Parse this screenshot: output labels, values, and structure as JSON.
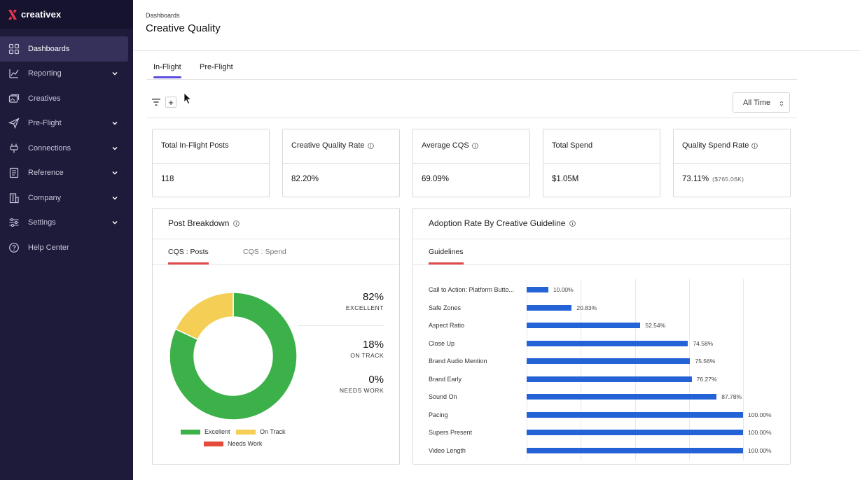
{
  "app": {
    "name": "creativex",
    "brand_color": "#e8384f",
    "sidebar_bg": "#1d1a3a"
  },
  "sidebar": {
    "items": [
      {
        "label": "Dashboards",
        "icon": "dashboard-grid-icon",
        "active": true,
        "has_chevron": false
      },
      {
        "label": "Reporting",
        "icon": "chart-icon",
        "active": false,
        "has_chevron": true
      },
      {
        "label": "Creatives",
        "icon": "image-stack-icon",
        "active": false,
        "has_chevron": false
      },
      {
        "label": "Pre-Flight",
        "icon": "paper-plane-icon",
        "active": false,
        "has_chevron": true
      },
      {
        "label": "Connections",
        "icon": "plug-icon",
        "active": false,
        "has_chevron": true
      },
      {
        "label": "Reference",
        "icon": "book-icon",
        "active": false,
        "has_chevron": true
      },
      {
        "label": "Company",
        "icon": "building-icon",
        "active": false,
        "has_chevron": true
      },
      {
        "label": "Settings",
        "icon": "sliders-icon",
        "active": false,
        "has_chevron": true
      },
      {
        "label": "Help Center",
        "icon": "help-circle-icon",
        "active": false,
        "has_chevron": false
      }
    ]
  },
  "header": {
    "breadcrumb": "Dashboards",
    "title": "Creative Quality"
  },
  "tabs": [
    {
      "label": "In-Flight",
      "active": true
    },
    {
      "label": "Pre-Flight",
      "active": false
    }
  ],
  "toolbar": {
    "add_label": "+",
    "time_filter": "All Time"
  },
  "kpis": [
    {
      "title": "Total In-Flight Posts",
      "value": "118",
      "sub": "",
      "info": false
    },
    {
      "title": "Creative Quality Rate",
      "value": "82.20%",
      "sub": "",
      "info": true
    },
    {
      "title": "Average CQS",
      "value": "69.09%",
      "sub": "",
      "info": true
    },
    {
      "title": "Total Spend",
      "value": "$1.05M",
      "sub": "",
      "info": false
    },
    {
      "title": "Quality Spend Rate",
      "value": "73.11%",
      "sub": "($765.06K)",
      "info": true
    }
  ],
  "post_breakdown": {
    "title": "Post Breakdown",
    "tabs": [
      {
        "label": "CQS : Posts",
        "active": true
      },
      {
        "label": "CQS : Spend",
        "active": false
      }
    ],
    "stats": [
      {
        "value": "82%",
        "label": "EXCELLENT"
      },
      {
        "value": "18%",
        "label": "ON TRACK"
      },
      {
        "value": "0%",
        "label": "NEEDS WORK"
      }
    ],
    "legend": [
      {
        "label": "Excellent",
        "color": "#3cb14a"
      },
      {
        "label": "On Track",
        "color": "#f5ce55"
      },
      {
        "label": "Needs Work",
        "color": "#e54b3c"
      }
    ]
  },
  "adoption": {
    "title": "Adoption Rate By Creative Guideline",
    "tabs": [
      {
        "label": "Guidelines",
        "active": true
      }
    ]
  },
  "chart_data": [
    {
      "type": "pie",
      "title": "Post Breakdown",
      "categories": [
        "Excellent",
        "On Track",
        "Needs Work"
      ],
      "values": [
        82,
        18,
        0
      ],
      "colors": [
        "#3cb14a",
        "#f5ce55",
        "#e54b3c"
      ],
      "donut": true
    },
    {
      "type": "bar",
      "orientation": "horizontal",
      "title": "Adoption Rate By Creative Guideline",
      "categories": [
        "Call to Action: Platform Butto...",
        "Safe Zones",
        "Aspect Ratio",
        "Close Up",
        "Brand Audio Mention",
        "Brand Early",
        "Sound On",
        "Pacing",
        "Supers Present",
        "Video Length"
      ],
      "values": [
        10.0,
        20.83,
        52.54,
        74.58,
        75.56,
        76.27,
        87.78,
        100.0,
        100.0,
        100.0
      ],
      "value_labels": [
        "10.00%",
        "20.83%",
        "52.54%",
        "74.58%",
        "75.56%",
        "76.27%",
        "87.78%",
        "100.00%",
        "100.00%",
        "100.00%"
      ],
      "xlim": [
        0,
        100
      ],
      "color": "#2463d6",
      "grid": true
    }
  ]
}
